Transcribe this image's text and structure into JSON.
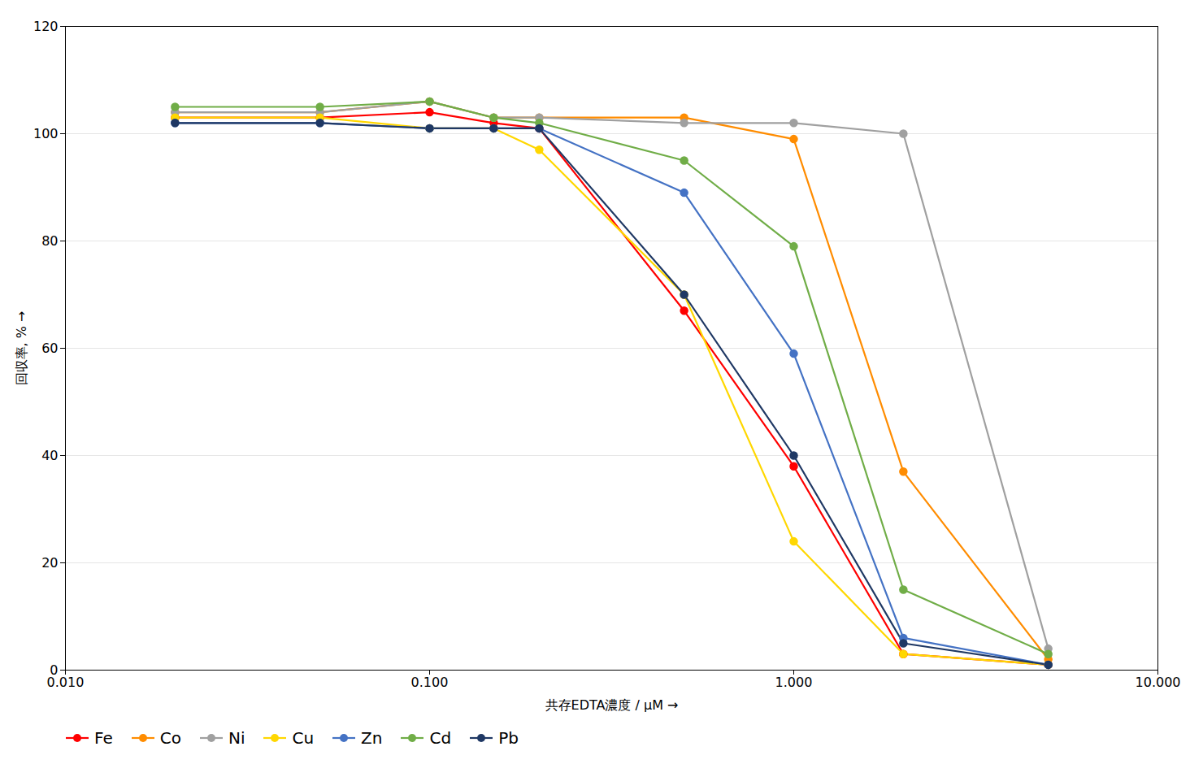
{
  "chart_data": {
    "type": "line",
    "xlabel": "共存EDTA濃度 / μM",
    "ylabel": "回収率, %",
    "log": "x",
    "xlim": [
      0.01,
      10.0
    ],
    "xticks": [
      {
        "value": 0.01,
        "label": "0.010"
      },
      {
        "value": 0.1,
        "label": "0.100"
      },
      {
        "value": 1.0,
        "label": "1.000"
      },
      {
        "value": 10.0,
        "label": "10.000"
      }
    ],
    "ylim": [
      0,
      120
    ],
    "yticks": [
      0,
      20,
      40,
      60,
      80,
      100,
      120
    ],
    "grid": "y",
    "legend": "lower left",
    "marker": "circle",
    "x": [
      0.02,
      0.05,
      0.1,
      0.15,
      0.2,
      0.5,
      1.0,
      2.0,
      5.0
    ],
    "series": [
      {
        "name": "Fe",
        "color": "#FF0000",
        "values": [
          103,
          103,
          104,
          102,
          101,
          67,
          38,
          3,
          1
        ]
      },
      {
        "name": "Co",
        "color": "#FF8C00",
        "values": [
          104,
          104,
          106,
          103,
          103,
          103,
          99,
          37,
          2
        ]
      },
      {
        "name": "Ni",
        "color": "#A0A0A0",
        "values": [
          104,
          104,
          106,
          103,
          103,
          102,
          102,
          100,
          4
        ]
      },
      {
        "name": "Cu",
        "color": "#FFD700",
        "values": [
          103,
          103,
          101,
          101,
          97,
          70,
          24,
          3,
          1
        ]
      },
      {
        "name": "Zn",
        "color": "#4472C4",
        "values": [
          102,
          102,
          101,
          101,
          101,
          89,
          59,
          6,
          1
        ]
      },
      {
        "name": "Cd",
        "color": "#70AD47",
        "values": [
          105,
          105,
          106,
          103,
          102,
          95,
          79,
          15,
          3
        ]
      },
      {
        "name": "Pb",
        "color": "#1F3864",
        "values": [
          102,
          102,
          101,
          101,
          101,
          70,
          40,
          5,
          1
        ]
      }
    ]
  }
}
